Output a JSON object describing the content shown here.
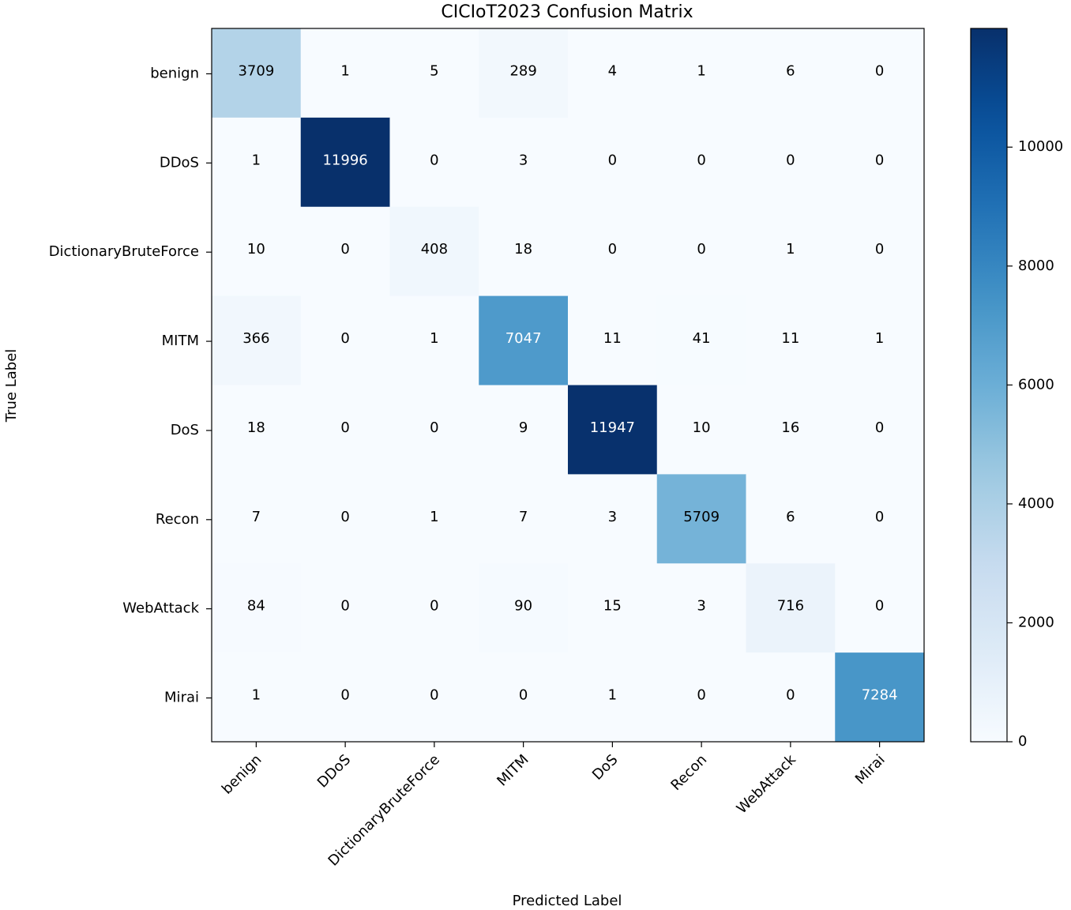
{
  "chart_data": {
    "type": "heatmap",
    "title": "CICIoT2023 Confusion Matrix",
    "xlabel": "Predicted Label",
    "ylabel": "True Label",
    "row_labels": [
      "benign",
      "DDoS",
      "DictionaryBruteForce",
      "MITM",
      "DoS",
      "Recon",
      "WebAttack",
      "Mirai"
    ],
    "col_labels": [
      "benign",
      "DDoS",
      "DictionaryBruteForce",
      "MITM",
      "DoS",
      "Recon",
      "WebAttack",
      "Mirai"
    ],
    "matrix": [
      [
        3709,
        1,
        5,
        289,
        4,
        1,
        6,
        0
      ],
      [
        1,
        11996,
        0,
        3,
        0,
        0,
        0,
        0
      ],
      [
        10,
        0,
        408,
        18,
        0,
        0,
        1,
        0
      ],
      [
        366,
        0,
        1,
        7047,
        11,
        41,
        11,
        1
      ],
      [
        18,
        0,
        0,
        9,
        11947,
        10,
        16,
        0
      ],
      [
        7,
        0,
        1,
        7,
        3,
        5709,
        6,
        0
      ],
      [
        84,
        0,
        0,
        90,
        15,
        3,
        716,
        0
      ],
      [
        1,
        0,
        0,
        0,
        1,
        0,
        0,
        7284
      ]
    ],
    "colormap": "Blues",
    "vmin": 0,
    "vmax": 11996,
    "colorbar_ticks": [
      0,
      2000,
      4000,
      6000,
      8000,
      10000
    ],
    "text_color_threshold": 5998,
    "colors": {
      "text_dark": "#000000",
      "text_light": "#ffffff",
      "cmap_low": "#f7fbff",
      "cmap_high": "#08306b"
    }
  }
}
